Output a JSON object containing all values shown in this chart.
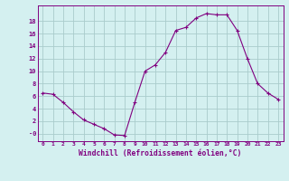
{
  "x": [
    0,
    1,
    2,
    3,
    4,
    5,
    6,
    7,
    8,
    9,
    10,
    11,
    12,
    13,
    14,
    15,
    16,
    17,
    18,
    19,
    20,
    21,
    22,
    23
  ],
  "y": [
    6.5,
    6.3,
    5.0,
    3.5,
    2.2,
    1.5,
    0.8,
    -0.2,
    -0.3,
    5.0,
    10.0,
    11.0,
    13.0,
    16.5,
    17.0,
    18.5,
    19.2,
    19.0,
    19.0,
    16.5,
    12.0,
    8.0,
    6.5,
    5.5
  ],
  "line_color": "#800080",
  "marker": "+",
  "marker_size": 3,
  "bg_color": "#d4f0f0",
  "grid_color": "#aacccc",
  "xlabel": "Windchill (Refroidissement éolien,°C)",
  "xlim": [
    -0.5,
    23.5
  ],
  "ylim": [
    -1.2,
    20.5
  ],
  "yticks": [
    0,
    2,
    4,
    6,
    8,
    10,
    12,
    14,
    16,
    18
  ],
  "ytick_labels": [
    "-0",
    "2",
    "4",
    "6",
    "8",
    "10",
    "12",
    "14",
    "16",
    "18"
  ],
  "xticks": [
    0,
    1,
    2,
    3,
    4,
    5,
    6,
    7,
    8,
    9,
    10,
    11,
    12,
    13,
    14,
    15,
    16,
    17,
    18,
    19,
    20,
    21,
    22,
    23
  ]
}
